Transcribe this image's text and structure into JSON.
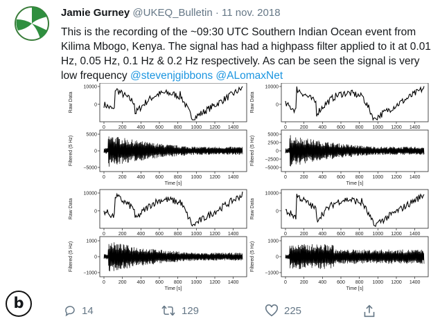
{
  "tweet": {
    "author_name": "Jamie Gurney",
    "handle": "@UKEQ_Bulletin",
    "separator": "·",
    "date": "11 nov. 2018",
    "text": "This is the recording of the ~09:30 UTC Southern Indian Ocean event from Kilima Mbogo, Kenya. The signal has had a highpass filter applied to it at 0.01 Hz, 0.05 Hz, 0.1 Hz & 0.2 Hz respectively. As can be seen the signal is very low frequency",
    "mentions": [
      "@stevenjgibbons",
      "@ALomaxNet"
    ]
  },
  "figure_label": "b",
  "actions": {
    "reply_count": "14",
    "retweet_count": "129",
    "like_count": "225"
  },
  "chart_data": [
    {
      "type": "line",
      "panel": "top-left-raw",
      "ylabel": "Raw Data",
      "yticks": [
        "10000",
        "0"
      ],
      "xticks": [
        "0",
        "200",
        "400",
        "600",
        "800",
        "1000",
        "1200",
        "1400"
      ]
    },
    {
      "type": "line",
      "panel": "top-left-filtered",
      "ylabel": "Filtered (5 Hz)",
      "yticks": [
        "5000",
        "0",
        "−5000"
      ],
      "xticks": [
        "0",
        "200",
        "400",
        "600",
        "800",
        "1000",
        "1200",
        "1400"
      ],
      "xlabel": "Time [s]"
    },
    {
      "type": "line",
      "panel": "top-right-raw",
      "ylabel": "Raw Data",
      "yticks": [
        "10000",
        "0"
      ],
      "xticks": [
        "0",
        "200",
        "400",
        "600",
        "800",
        "1000",
        "1200",
        "1400"
      ]
    },
    {
      "type": "line",
      "panel": "top-right-filtered",
      "ylabel": "Filtered (5 Hz)",
      "yticks": [
        "5000",
        "2500",
        "0",
        "−2500",
        "−5000"
      ],
      "xticks": [
        "0",
        "200",
        "400",
        "600",
        "800",
        "1000",
        "1200",
        "1400"
      ],
      "xlabel": "Time [s]"
    },
    {
      "type": "line",
      "panel": "bottom-left-raw",
      "ylabel": "Raw Data",
      "yticks": [
        "10000",
        "0"
      ],
      "xticks": [
        "0",
        "200",
        "400",
        "600",
        "800",
        "1000",
        "1200",
        "1400"
      ]
    },
    {
      "type": "line",
      "panel": "bottom-left-filtered",
      "ylabel": "Filtered (5 Hz)",
      "yticks": [
        "1000",
        "0",
        "−1000"
      ],
      "xticks": [
        "0",
        "200",
        "400",
        "600",
        "800",
        "1000",
        "1200",
        "1400"
      ],
      "xlabel": "Time [s]"
    },
    {
      "type": "line",
      "panel": "bottom-right-raw",
      "ylabel": "Raw Data",
      "yticks": [
        "10000",
        "0"
      ],
      "xticks": [
        "0",
        "200",
        "400",
        "600",
        "800",
        "1000",
        "1200",
        "1400"
      ]
    },
    {
      "type": "line",
      "panel": "bottom-right-filtered",
      "ylabel": "Filtered (5 Hz)",
      "yticks": [
        "1000",
        "0",
        "−1000"
      ],
      "xticks": [
        "0",
        "200",
        "400",
        "600",
        "800",
        "1000",
        "1200",
        "1400"
      ],
      "xlabel": "Time [s]"
    }
  ]
}
